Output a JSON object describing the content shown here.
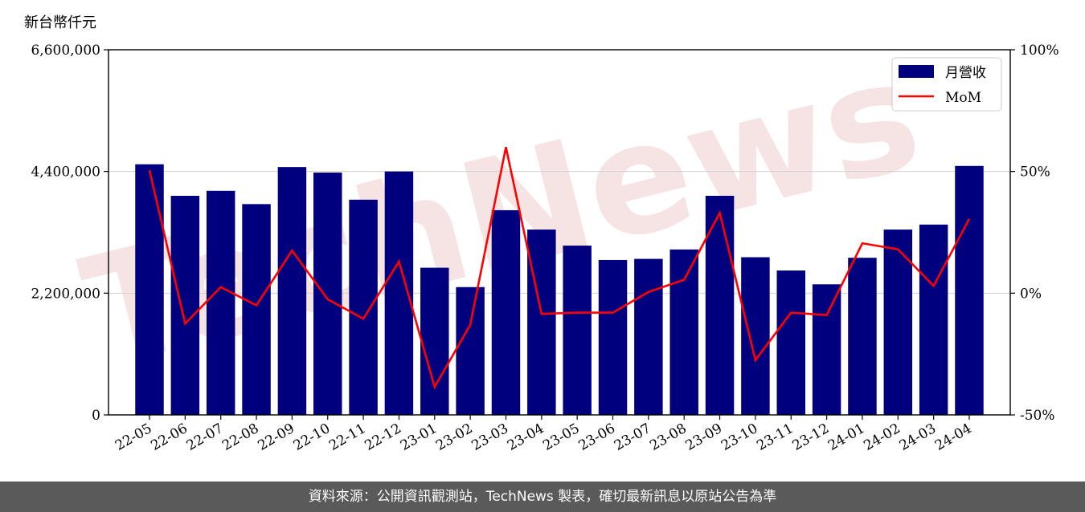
{
  "unit_label": "新台幣仟元",
  "footer_text": "資料來源：公開資訊觀測站，TechNews 製表，確切最新訊息以原站公告為準",
  "watermark": {
    "text": "TechNews",
    "color": "#f2d9d9"
  },
  "colors": {
    "bar": "#00007f",
    "line": "#ff0000",
    "grid": "#d0d0d0"
  },
  "chart_data": {
    "type": "bar",
    "categories": [
      "22-05",
      "22-06",
      "22-07",
      "22-08",
      "22-09",
      "22-10",
      "22-11",
      "22-12",
      "23-01",
      "23-02",
      "23-03",
      "23-04",
      "23-05",
      "23-06",
      "23-07",
      "23-08",
      "23-09",
      "23-10",
      "23-11",
      "23-12",
      "24-01",
      "24-02",
      "24-03",
      "24-04"
    ],
    "series": [
      {
        "name": "月營收",
        "type": "bar",
        "axis": "left",
        "values": [
          4530000,
          3960000,
          4050000,
          3810000,
          4480000,
          4380000,
          3890000,
          4400000,
          2660000,
          2310000,
          3700000,
          3350000,
          3060000,
          2800000,
          2820000,
          2990000,
          3960000,
          2850000,
          2610000,
          2360000,
          2840000,
          3350000,
          3440000,
          4500000
        ]
      },
      {
        "name": "MoM",
        "type": "line",
        "axis": "right",
        "values": [
          50.5,
          -12.5,
          2.5,
          -5.0,
          17.5,
          -2.5,
          -10.5,
          13.0,
          -38.5,
          -13.0,
          60.0,
          -8.5,
          -8.0,
          -8.0,
          0.5,
          5.5,
          33.0,
          -27.5,
          -8.0,
          -9.0,
          20.5,
          18.0,
          3.0,
          30.5
        ]
      }
    ],
    "y_left": {
      "ylim": [
        0,
        6600000
      ],
      "ticks": [
        0,
        2200000,
        4400000,
        6600000
      ],
      "tick_labels": [
        "0",
        "2,200,000",
        "4,400,000",
        "6,600,000"
      ]
    },
    "y_right": {
      "ylim": [
        -50,
        100
      ],
      "ticks": [
        -50,
        0,
        50,
        100
      ],
      "tick_labels": [
        "-50%",
        "0%",
        "50%",
        "100%"
      ]
    },
    "grid": "horizontal",
    "legend_position": "top-right"
  }
}
